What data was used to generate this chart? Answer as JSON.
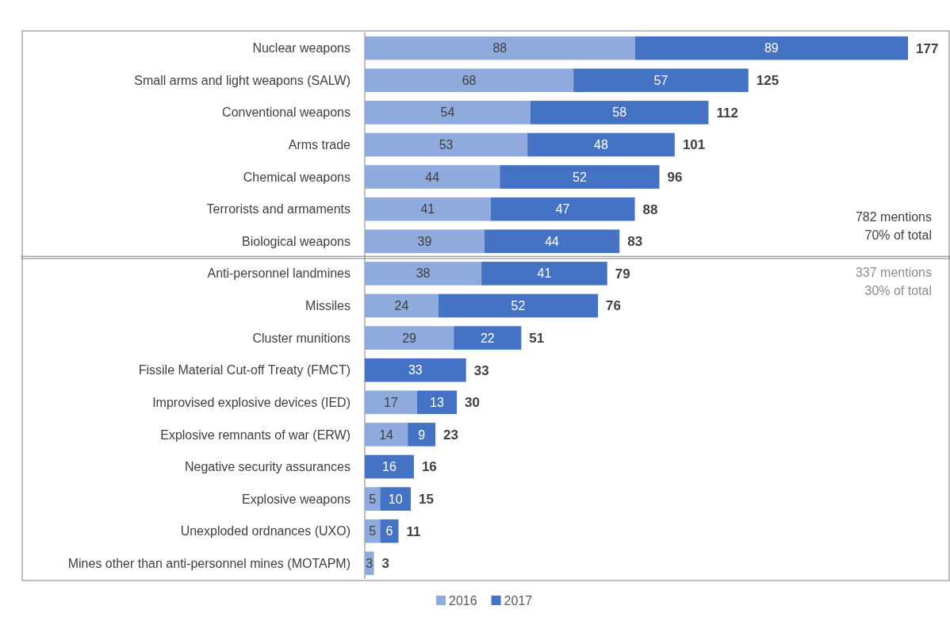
{
  "chart_data": {
    "type": "bar",
    "orientation": "horizontal",
    "stacked": true,
    "categories": [
      "Nuclear weapons",
      "Small arms and light weapons (SALW)",
      "Conventional weapons",
      "Arms trade",
      "Chemical weapons",
      "Terrorists and armaments",
      "Biological weapons",
      "Anti-personnel landmines",
      "Missiles",
      "Cluster munitions",
      "Fissile Material Cut-off Treaty (FMCT)",
      "Improvised explosive devices (IED)",
      "Explosive remnants of war (ERW)",
      "Negative security assurances",
      "Explosive weapons",
      "Unexploded ordnances (UXO)",
      "Mines other than anti-personnel mines (MOTAPM)"
    ],
    "series": [
      {
        "name": "2016",
        "color": "#8faadc",
        "values": [
          88,
          68,
          54,
          53,
          44,
          41,
          39,
          38,
          24,
          29,
          null,
          17,
          14,
          null,
          5,
          5,
          3
        ]
      },
      {
        "name": "2017",
        "color": "#4472c4",
        "values": [
          89,
          57,
          58,
          48,
          52,
          47,
          44,
          41,
          52,
          22,
          33,
          13,
          9,
          16,
          10,
          6,
          null
        ]
      }
    ],
    "data_labels": true,
    "totals": [
      "177",
      "125",
      "112",
      "101",
      "96",
      "88",
      "83",
      "79",
      "76",
      "51",
      "33",
      "30",
      "23",
      "16",
      "15",
      "11",
      "3"
    ],
    "annotations": [
      "782 mentions\n70% of total",
      "337 mentions\n30% of total"
    ],
    "legend": "bottom"
  }
}
